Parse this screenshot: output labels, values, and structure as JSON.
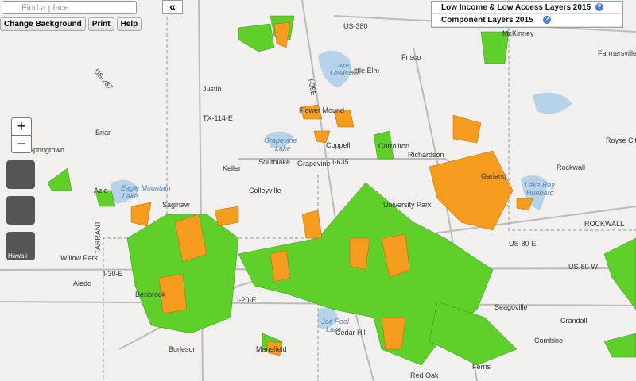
{
  "search": {
    "placeholder": "Find a place"
  },
  "toolbar": {
    "buttons": [
      "Change Background",
      "Print",
      "Help"
    ]
  },
  "layers_panel": {
    "items": [
      "Low Income & Low Access Layers 2015",
      "Component Layers 2015"
    ],
    "help_icon": "?"
  },
  "zoom": {
    "in": "+",
    "out": "−"
  },
  "region_buttons": {
    "hawaii": "Hawaii"
  },
  "collapse_button": "«",
  "towns": [
    "Little Elm",
    "Frisco",
    "McKinney",
    "Farmersville",
    "Justin",
    "Flower Mound",
    "Briar",
    "Springtown",
    "Coppell",
    "Carrollton",
    "Richardson",
    "Garland",
    "Rockwall",
    "Royse City",
    "Keller",
    "Southlake",
    "Grapevine",
    "Colleyville",
    "Azle",
    "Saginaw",
    "University Park",
    "Willow Park",
    "Aledo",
    "Benbrook",
    "Seagoville",
    "Crandall",
    "Combine",
    "Burleson",
    "Mansfield",
    "Cedar Hill",
    "Ferris",
    "Red Oak"
  ],
  "water": [
    "Lake",
    "Lewisville",
    "Grapevine",
    "Lake",
    "Eagle Mountain",
    "Lake",
    "Lake Ray",
    "Hubbard",
    "Joe Pool",
    "Lake"
  ],
  "roads": [
    "US-380",
    "I-35E",
    "I-635",
    "I-30-E",
    "I-20-E",
    "US-80-E",
    "US-80-W",
    "TX-114-E",
    "US-287",
    "ROCKWALL",
    "TARRANT"
  ]
}
